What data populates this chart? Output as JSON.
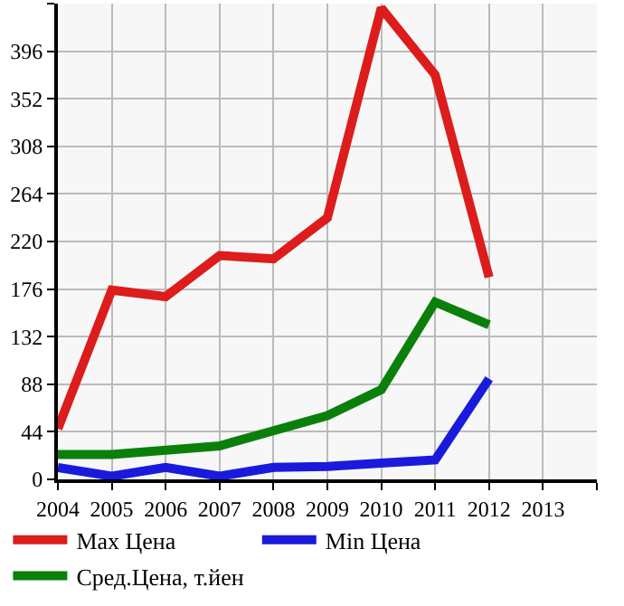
{
  "chart_data": {
    "type": "line",
    "x": [
      2004,
      2005,
      2006,
      2007,
      2008,
      2009,
      2010,
      2011,
      2012
    ],
    "series": [
      {
        "name": "Max Цена",
        "color": "#dd1c1c",
        "values": [
          47,
          175,
          169,
          207,
          204,
          242,
          436,
          374,
          187
        ]
      },
      {
        "name": "Min Цена",
        "color": "#1a1add",
        "values": [
          11,
          3,
          11,
          3,
          11,
          12,
          15,
          18,
          93
        ]
      },
      {
        "name": "Сред.Цена, т.йен",
        "color": "#0a800a",
        "values": [
          23,
          23,
          27,
          31,
          45,
          59,
          83,
          164,
          143
        ]
      }
    ],
    "xlim": [
      2004,
      2014
    ],
    "xticks": [
      2004,
      2005,
      2006,
      2007,
      2008,
      2009,
      2010,
      2011,
      2012,
      2013,
      {
        "value": 2014,
        "label": null
      }
    ],
    "ylim": [
      0,
      440
    ],
    "yticks": [
      0,
      44,
      88,
      132,
      176,
      220,
      264,
      308,
      352,
      396,
      {
        "value": 440,
        "label": null
      }
    ],
    "grid": true,
    "legend": "bottom",
    "marker": "none",
    "line_style": "solid"
  }
}
